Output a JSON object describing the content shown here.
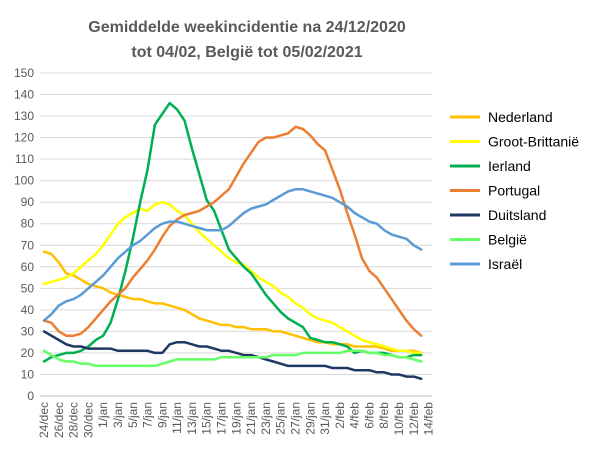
{
  "chart_data": {
    "type": "line",
    "title_lines": [
      "Gemiddelde weekincidentie  na 24/12/2020",
      "tot 04/02, België tot 05/02/2021"
    ],
    "xlabel": "",
    "ylabel": "",
    "ylim": [
      0,
      150
    ],
    "y_ticks": [
      0,
      10,
      20,
      30,
      40,
      50,
      60,
      70,
      80,
      90,
      100,
      110,
      120,
      130,
      140,
      150
    ],
    "grid": true,
    "legend_position": "right",
    "x_tick_labels": [
      "24/dec",
      "26/dec",
      "28/dec",
      "30/dec",
      "1/jan",
      "3/jan",
      "5/jan",
      "7/jan",
      "9/jan",
      "11/jan",
      "13/jan",
      "15/jan",
      "17/jan",
      "19/jan",
      "21/jan",
      "23/jan",
      "25/jan",
      "27/jan",
      "29/jan",
      "31/jan",
      "2/feb",
      "4/feb",
      "6/feb",
      "8/feb",
      "10/feb",
      "12/feb",
      "14/feb"
    ],
    "x": [
      "24/dec",
      "25/dec",
      "26/dec",
      "27/dec",
      "28/dec",
      "29/dec",
      "30/dec",
      "31/dec",
      "1/jan",
      "2/jan",
      "3/jan",
      "4/jan",
      "5/jan",
      "6/jan",
      "7/jan",
      "8/jan",
      "9/jan",
      "10/jan",
      "11/jan",
      "12/jan",
      "13/jan",
      "14/jan",
      "15/jan",
      "16/jan",
      "17/jan",
      "18/jan",
      "19/jan",
      "20/jan",
      "21/jan",
      "22/jan",
      "23/jan",
      "24/jan",
      "25/jan",
      "26/jan",
      "27/jan",
      "28/jan",
      "29/jan",
      "30/jan",
      "31/jan",
      "1/feb",
      "2/feb",
      "3/feb",
      "4/feb",
      "5/feb",
      "6/feb",
      "7/feb",
      "8/feb",
      "9/feb",
      "10/feb",
      "11/feb",
      "12/feb",
      "13/feb"
    ],
    "series": [
      {
        "name": "Nederland",
        "color": "#FFC000",
        "values": [
          67,
          66,
          62,
          57,
          56,
          54,
          52,
          51,
          50,
          48,
          47,
          46,
          45,
          45,
          44,
          43,
          43,
          42,
          41,
          40,
          38,
          36,
          35,
          34,
          33,
          33,
          32,
          32,
          31,
          31,
          31,
          30,
          30,
          29,
          28,
          27,
          26,
          25,
          25,
          24,
          24,
          24,
          23,
          23,
          23,
          23,
          22,
          21,
          21,
          21,
          21,
          20
        ]
      },
      {
        "name": "Groot-Brittanië",
        "color": "#FFFF00",
        "values": [
          52,
          53,
          54,
          55,
          57,
          60,
          63,
          66,
          70,
          75,
          80,
          83,
          85,
          87,
          86,
          89,
          90,
          89,
          86,
          84,
          80,
          76,
          73,
          70,
          67,
          64,
          62,
          61,
          58,
          55,
          53,
          51,
          48,
          46,
          43,
          41,
          38,
          36,
          35,
          34,
          32,
          30,
          28,
          26,
          25,
          24,
          23,
          22,
          21,
          21,
          20,
          20
        ]
      },
      {
        "name": "Ierland",
        "color": "#00B050",
        "values": [
          16,
          18,
          19,
          20,
          20,
          21,
          23,
          26,
          28,
          34,
          45,
          58,
          73,
          90,
          105,
          126,
          131,
          136,
          133,
          128,
          115,
          103,
          91,
          86,
          77,
          68,
          64,
          60,
          57,
          52,
          47,
          43,
          39,
          36,
          34,
          32,
          27,
          26,
          25,
          25,
          24,
          23,
          20,
          21,
          20,
          20,
          20,
          19,
          18,
          18,
          19,
          19
        ]
      },
      {
        "name": "Portugal",
        "color": "#ED7D31",
        "values": [
          35,
          34,
          30,
          28,
          28,
          29,
          32,
          36,
          40,
          44,
          47,
          50,
          55,
          59,
          63,
          68,
          74,
          79,
          82,
          84,
          85,
          86,
          88,
          90,
          93,
          96,
          102,
          108,
          113,
          118,
          120,
          120,
          121,
          122,
          125,
          124,
          121,
          117,
          114,
          105,
          96,
          85,
          75,
          64,
          58,
          55,
          50,
          45,
          40,
          35,
          31,
          28
        ]
      },
      {
        "name": "Duitsland",
        "color": "#203864",
        "values": [
          30,
          28,
          26,
          24,
          23,
          23,
          22,
          22,
          22,
          22,
          21,
          21,
          21,
          21,
          21,
          20,
          20,
          24,
          25,
          25,
          24,
          23,
          23,
          22,
          21,
          21,
          20,
          19,
          19,
          18,
          17,
          16,
          15,
          14,
          14,
          14,
          14,
          14,
          14,
          13,
          13,
          13,
          12,
          12,
          12,
          11,
          11,
          10,
          10,
          9,
          9,
          8
        ]
      },
      {
        "name": "België",
        "color": "#66FF66",
        "values": [
          21,
          19,
          17,
          16,
          16,
          15,
          15,
          14,
          14,
          14,
          14,
          14,
          14,
          14,
          14,
          14,
          15,
          16,
          17,
          17,
          17,
          17,
          17,
          17,
          18,
          18,
          18,
          18,
          18,
          18,
          18,
          19,
          19,
          19,
          19,
          20,
          20,
          20,
          20,
          20,
          20,
          21,
          21,
          21,
          20,
          20,
          19,
          19,
          18,
          18,
          17,
          16
        ]
      },
      {
        "name": "Israël",
        "color": "#5B9BD5",
        "values": [
          35,
          38,
          42,
          44,
          45,
          47,
          50,
          53,
          56,
          60,
          64,
          67,
          70,
          72,
          75,
          78,
          80,
          81,
          81,
          80,
          79,
          78,
          77,
          77,
          77,
          79,
          82,
          85,
          87,
          88,
          89,
          91,
          93,
          95,
          96,
          96,
          95,
          94,
          93,
          92,
          90,
          88,
          85,
          83,
          81,
          80,
          77,
          75,
          74,
          73,
          70,
          68
        ]
      }
    ]
  }
}
